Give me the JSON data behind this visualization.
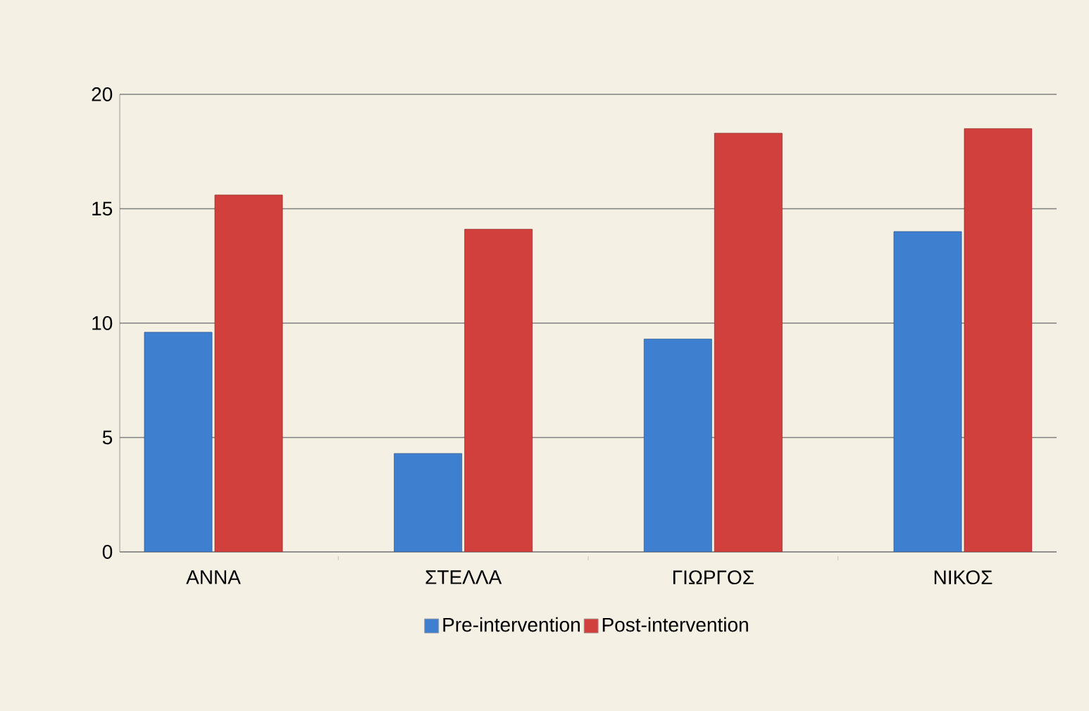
{
  "chart_data": {
    "type": "bar",
    "categories": [
      "ΑΝΝΑ",
      "ΣΤΕΛΛΑ",
      "ΓΙΩΡΓΟΣ",
      "ΝΙΚΟΣ"
    ],
    "series": [
      {
        "name": "Pre-intervention",
        "color": "#3f7fcf",
        "values": [
          9.6,
          4.3,
          9.3,
          14.0
        ]
      },
      {
        "name": "Post-intervention",
        "color": "#d2403d",
        "values": [
          15.6,
          14.1,
          18.3,
          18.5
        ]
      }
    ],
    "ylim": [
      0,
      20
    ],
    "yticks": [
      0,
      5,
      10,
      15,
      20
    ],
    "grid": "y",
    "legend": "bottom"
  }
}
